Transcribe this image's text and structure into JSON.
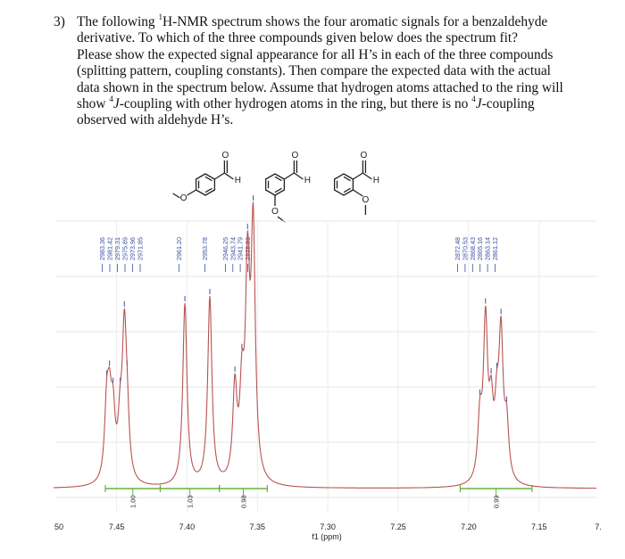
{
  "question": {
    "number": "3)",
    "lines": [
      [
        "The following ",
        "1",
        "H-NMR spectrum shows the four aromatic signals for a benzaldehyde"
      ],
      [
        "derivative. To which of the three compounds given below does the spectrum fit?"
      ],
      [
        "Please show the expected signal appearance for all H’s in each of the three compounds"
      ],
      [
        "(splitting pattern, coupling constants). Then compare the expected data with the actual"
      ],
      [
        "data shown in the spectrum below. Assume that hydrogen atoms attached to the ring will"
      ],
      [
        "show ",
        "4",
        "J-coupling with other hydrogen atoms in the ring, but there is no ",
        "4",
        "J-coupling"
      ],
      [
        "observed with aldehyde H’s."
      ]
    ]
  },
  "structures": {
    "aldehyde_o": "O",
    "aldehyde_h": "H",
    "methoxy_o": "O"
  },
  "peak_labels": {
    "group1": [
      "2983.36",
      "2981.42",
      "2979.31",
      "2975.89",
      "2973.96",
      "2971.85"
    ],
    "group2": [
      "2961.20"
    ],
    "group3": [
      "2953.78"
    ],
    "group4": [
      "2946.25",
      "2943.74",
      "2941.79",
      "2939.86"
    ],
    "group5": [
      "2872.48",
      "2870.53",
      "2868.43",
      "2865.16",
      "2863.14",
      "2861.12"
    ]
  },
  "integrals": [
    "1.00",
    "1.03",
    "0.98",
    "0.99"
  ],
  "chart_data": {
    "type": "line",
    "xlabel": "f1 (ppm)",
    "x_ticks": [
      "50",
      "7.45",
      "7.40",
      "7.35",
      "7.30",
      "7.25",
      "7.20",
      "7.15",
      "7."
    ],
    "xlim": [
      7.127,
      7.477
    ],
    "x_reversed": true,
    "grid": true,
    "peaks": [
      {
        "ppm": 7.457,
        "height": 0.26
      },
      {
        "ppm": 7.455,
        "height": 0.23
      },
      {
        "ppm": 7.4525,
        "height": 0.22
      },
      {
        "ppm": 7.4475,
        "height": 0.18
      },
      {
        "ppm": 7.4445,
        "height": 0.52
      },
      {
        "ppm": 7.4425,
        "height": 0.18
      },
      {
        "ppm": 7.4015,
        "height": 0.68
      },
      {
        "ppm": 7.3838,
        "height": 0.7
      },
      {
        "ppm": 7.366,
        "height": 0.34
      },
      {
        "ppm": 7.361,
        "height": 0.3
      },
      {
        "ppm": 7.357,
        "height": 0.74
      },
      {
        "ppm": 7.353,
        "height": 0.92
      },
      {
        "ppm": 7.192,
        "height": 0.22
      },
      {
        "ppm": 7.188,
        "height": 0.58
      },
      {
        "ppm": 7.184,
        "height": 0.24
      },
      {
        "ppm": 7.18,
        "height": 0.22
      },
      {
        "ppm": 7.177,
        "height": 0.52
      },
      {
        "ppm": 7.173,
        "height": 0.2
      }
    ],
    "integral_ranges": [
      [
        7.458,
        7.419
      ],
      [
        7.419,
        7.377
      ],
      [
        7.377,
        7.343
      ],
      [
        7.206,
        7.155
      ]
    ],
    "colors": {
      "spectrum": "#b85450",
      "integral": "#66b23d",
      "peak_label": "#3a4ea3",
      "integral_label": "#222222"
    }
  }
}
